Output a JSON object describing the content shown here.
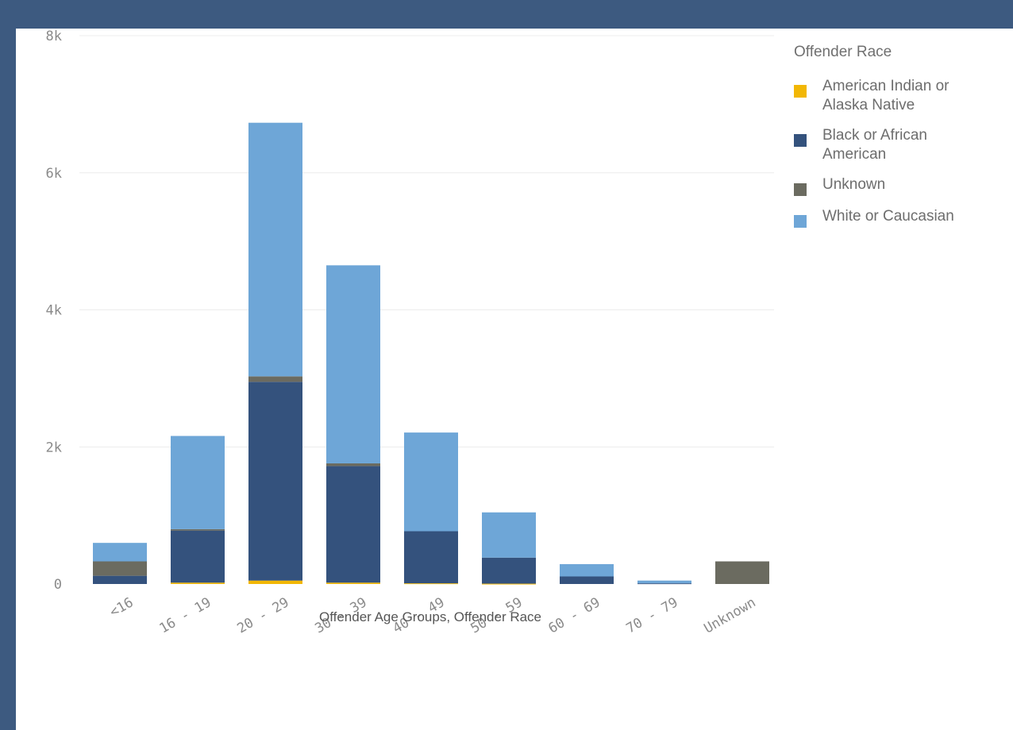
{
  "chart_data": {
    "type": "bar",
    "stacked": true,
    "xlabel": "Offender Age Groups, Offender Race",
    "ylabel": "",
    "ylim": [
      0,
      8000
    ],
    "yticks": [
      0,
      2000,
      4000,
      6000,
      8000
    ],
    "ytick_labels": [
      "0",
      "2k",
      "4k",
      "6k",
      "8k"
    ],
    "categories": [
      "<16",
      "16 - 19",
      "20 - 29",
      "30 - 39",
      "40 - 49",
      "50 - 59",
      "60 - 69",
      "70 - 79",
      "Unknown"
    ],
    "legend_title": "Offender Race",
    "legend_position": "right",
    "series": [
      {
        "name": "American Indian or Alaska Native",
        "color": "#f2b705",
        "values": [
          0,
          20,
          50,
          20,
          10,
          5,
          0,
          0,
          0
        ]
      },
      {
        "name": "Black or African American",
        "color": "#34527d",
        "values": [
          120,
          760,
          2900,
          1700,
          760,
          380,
          110,
          10,
          0
        ]
      },
      {
        "name": "Unknown",
        "color": "#6b6b60",
        "values": [
          210,
          20,
          80,
          40,
          0,
          0,
          0,
          0,
          330
        ]
      },
      {
        "name": "White or Caucasian",
        "color": "#6ea6d7",
        "values": [
          270,
          1360,
          3700,
          2890,
          1440,
          660,
          180,
          40,
          0
        ]
      }
    ]
  }
}
